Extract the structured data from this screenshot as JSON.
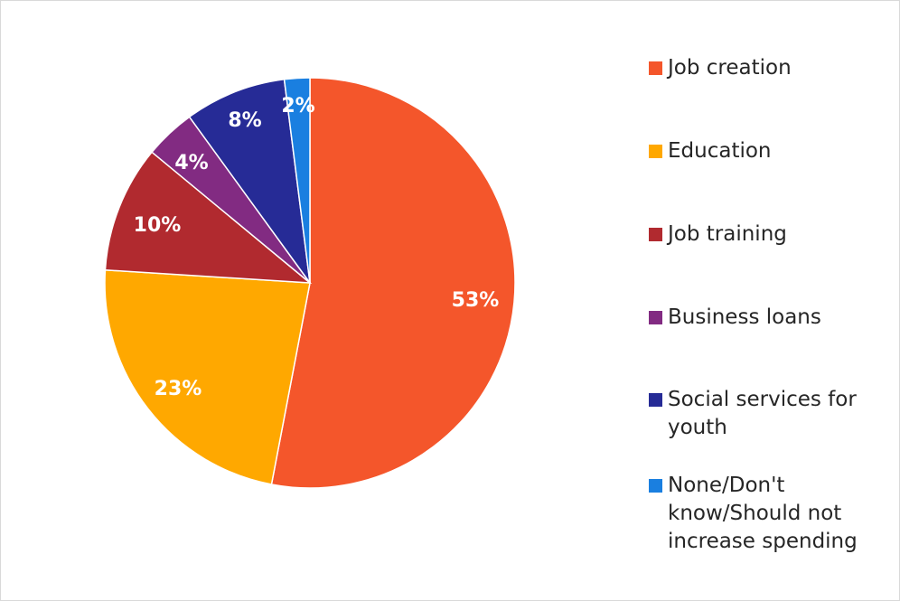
{
  "chart_data": {
    "type": "pie",
    "title": "",
    "legend_position": "right",
    "start_angle_deg": 0,
    "direction": "clockwise",
    "slices": [
      {
        "label": "Job creation",
        "value": 53,
        "display": "53%",
        "color": "#F4562B"
      },
      {
        "label": "Education",
        "value": 23,
        "display": "23%",
        "color": "#FFA800"
      },
      {
        "label": "Job training",
        "value": 10,
        "display": "10%",
        "color": "#B12A2F"
      },
      {
        "label": "Business loans",
        "value": 4,
        "display": "4%",
        "color": "#822B82"
      },
      {
        "label": "Social services for youth",
        "value": 8,
        "display": "8%",
        "color": "#262B96"
      },
      {
        "label": "None/Don't know/Should not increase spending",
        "value": 2,
        "display": "2%",
        "color": "#1A7FE0"
      }
    ]
  }
}
